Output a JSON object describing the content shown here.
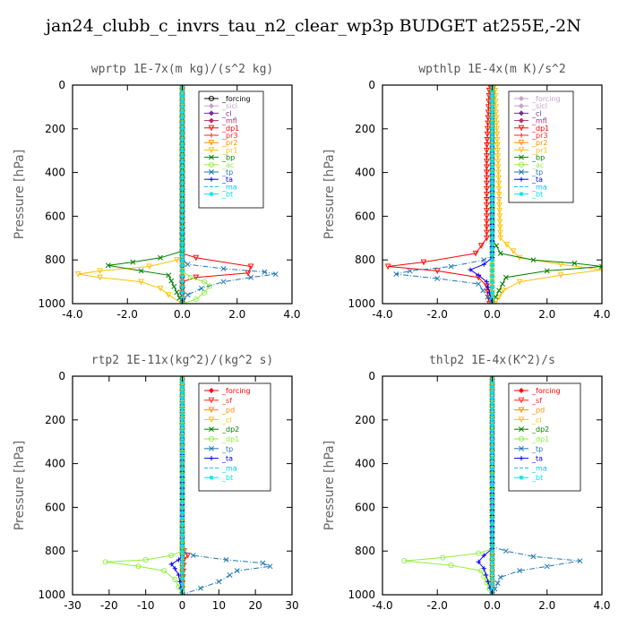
{
  "title": "jan24_clubb_c_invrs_tau_n2_clear_wp3p  BUDGET at255E,-2N",
  "chart_data": [
    {
      "type": "line",
      "title": "wprtp   1E-7x(m kg)/(s^2 kg)",
      "ylabel": "Pressure  [hPa]",
      "xlim": [
        -4,
        4
      ],
      "ylim": [
        1000,
        0
      ],
      "xticks": [
        -4,
        -2,
        0,
        2,
        4
      ],
      "xtick_labels": [
        "-4.0",
        "-2.0",
        "0.0",
        "2.0",
        "4.0"
      ],
      "yticks": [
        0,
        200,
        400,
        600,
        800,
        1000
      ],
      "ytick_labels": [
        "0",
        "200",
        "400",
        "600",
        "800",
        "1000"
      ],
      "legend_position": "top-right",
      "series": [
        {
          "name": "_forcing",
          "color": "#000000",
          "marker": "circle",
          "x": [
            0,
            0,
            0,
            0,
            0
          ],
          "y": [
            0,
            250,
            500,
            750,
            1000
          ]
        },
        {
          "name": "_sicl",
          "color": "#c8a2c8",
          "marker": "diamond",
          "x": [
            0,
            0,
            0
          ],
          "y": [
            0,
            500,
            1000
          ]
        },
        {
          "name": "_cl",
          "color": "#7030a0",
          "marker": "diamond",
          "x": [
            0,
            0,
            0
          ],
          "y": [
            0,
            500,
            1000
          ]
        },
        {
          "name": "_mfl",
          "color": "#b0306a",
          "marker": "diamond",
          "x": [
            0,
            0,
            0
          ],
          "y": [
            0,
            500,
            1000
          ]
        },
        {
          "name": "_dp1",
          "color": "#ff0000",
          "marker": "triangle",
          "x": [
            0,
            0,
            0.5,
            2.5,
            2.4,
            0.5,
            0,
            0
          ],
          "y": [
            0,
            770,
            790,
            830,
            860,
            880,
            900,
            1000
          ]
        },
        {
          "name": "_pr3",
          "color": "#ff2020",
          "marker": "plus",
          "x": [
            0,
            0,
            0
          ],
          "y": [
            0,
            500,
            1000
          ]
        },
        {
          "name": "_pr2",
          "color": "#ff8c00",
          "marker": "triangle",
          "x": [
            0,
            0,
            0
          ],
          "y": [
            0,
            500,
            1000
          ]
        },
        {
          "name": "_pr1",
          "color": "#ffc000",
          "marker": "triangle",
          "x": [
            0,
            0,
            -0.2,
            -1.2,
            -3.0,
            -3.8,
            -3.0,
            -1.5,
            -0.8,
            -0.5,
            0
          ],
          "y": [
            0,
            780,
            800,
            830,
            850,
            865,
            880,
            900,
            930,
            960,
            1000
          ]
        },
        {
          "name": "_bp",
          "color": "#008000",
          "marker": "cross",
          "x": [
            0,
            0,
            -0.8,
            -1.8,
            -2.7,
            -1.5,
            -0.5,
            0
          ],
          "y": [
            0,
            760,
            790,
            810,
            825,
            850,
            870,
            1000
          ]
        },
        {
          "name": "_ac",
          "color": "#90ee40",
          "marker": "circle",
          "x": [
            0,
            0,
            0,
            0.3,
            0.8,
            1.0,
            0.8,
            0.5,
            0
          ],
          "y": [
            0,
            820,
            850,
            880,
            900,
            920,
            950,
            980,
            1000
          ]
        },
        {
          "name": "_tp",
          "color": "#1f77b4",
          "marker": "cross",
          "x": [
            0,
            0,
            0.2,
            1.5,
            3.0,
            3.4,
            2.5,
            1.5,
            0.7,
            0.2,
            0
          ],
          "y": [
            0,
            800,
            820,
            840,
            855,
            865,
            880,
            900,
            930,
            960,
            1000
          ]
        },
        {
          "name": "_ta",
          "color": "#0000ff",
          "marker": "plus",
          "x": [
            0,
            0,
            0
          ],
          "y": [
            0,
            500,
            1000
          ]
        },
        {
          "name": "_ma",
          "color": "#00bfff",
          "marker": "none",
          "x": [
            0,
            0,
            0
          ],
          "y": [
            0,
            500,
            1000
          ]
        },
        {
          "name": "_bt",
          "color": "#00e5ee",
          "marker": "star",
          "x": [
            0,
            0,
            0
          ],
          "y": [
            0,
            500,
            1000
          ]
        }
      ]
    },
    {
      "type": "line",
      "title": "wpthlp   1E-4x(m K)/s^2",
      "ylabel": "Pressure  [hPa]",
      "xlim": [
        -4,
        4
      ],
      "ylim": [
        1000,
        0
      ],
      "xticks": [
        -4,
        -2,
        0,
        2,
        4
      ],
      "xtick_labels": [
        "-4.0",
        "-2.0",
        "0.0",
        "2.0",
        "4.0"
      ],
      "yticks": [
        0,
        200,
        400,
        600,
        800,
        1000
      ],
      "ytick_labels": [
        "0",
        "200",
        "400",
        "600",
        "800",
        "1000"
      ],
      "legend_position": "top-right",
      "series": [
        {
          "name": "_forcing",
          "color": "#c8a2c8",
          "marker": "diamond",
          "x": [
            0,
            0,
            0
          ],
          "y": [
            0,
            500,
            1000
          ]
        },
        {
          "name": "_sicl",
          "color": "#c8a2c8",
          "marker": "diamond",
          "x": [
            0,
            0,
            0
          ],
          "y": [
            0,
            500,
            1000
          ]
        },
        {
          "name": "_cl",
          "color": "#7030a0",
          "marker": "diamond",
          "x": [
            0,
            0,
            0
          ],
          "y": [
            0,
            500,
            1000
          ]
        },
        {
          "name": "_mfl",
          "color": "#b0306a",
          "marker": "diamond",
          "x": [
            0,
            0,
            0
          ],
          "y": [
            0,
            500,
            1000
          ]
        },
        {
          "name": "_dp1",
          "color": "#ff0000",
          "marker": "triangle",
          "x": [
            -0.1,
            -0.2,
            -0.2,
            -0.6,
            -2.5,
            -3.8,
            -2.0,
            -0.5,
            -0.2,
            -0.1
          ],
          "y": [
            0,
            300,
            700,
            770,
            810,
            830,
            850,
            880,
            920,
            1000
          ]
        },
        {
          "name": "_pr3",
          "color": "#ff2020",
          "marker": "plus",
          "x": [
            0,
            0,
            0
          ],
          "y": [
            0,
            500,
            1000
          ]
        },
        {
          "name": "_pr2",
          "color": "#ff8c00",
          "marker": "triangle",
          "x": [
            0,
            0,
            0
          ],
          "y": [
            0,
            500,
            1000
          ]
        },
        {
          "name": "_pr1",
          "color": "#ffc000",
          "marker": "triangle",
          "x": [
            0.1,
            0.2,
            0.3,
            1.0,
            2.5,
            4.0,
            2.5,
            1.0,
            0.4,
            0.1
          ],
          "y": [
            0,
            300,
            700,
            790,
            820,
            845,
            870,
            900,
            940,
            1000
          ]
        },
        {
          "name": "_bp",
          "color": "#008000",
          "marker": "cross",
          "x": [
            0,
            0,
            0.3,
            1.5,
            3.0,
            4.0,
            2.0,
            0.5,
            0
          ],
          "y": [
            0,
            700,
            770,
            800,
            815,
            830,
            850,
            880,
            1000
          ]
        },
        {
          "name": "_ac",
          "color": "#90ee40",
          "marker": "circle",
          "x": [
            0,
            0,
            0
          ],
          "y": [
            0,
            500,
            1000
          ]
        },
        {
          "name": "_tp",
          "color": "#1f77b4",
          "marker": "cross",
          "x": [
            0,
            0,
            -0.3,
            -1.5,
            -3.0,
            -3.5,
            -2.0,
            -0.5,
            0
          ],
          "y": [
            0,
            780,
            800,
            830,
            850,
            865,
            885,
            910,
            1000
          ]
        },
        {
          "name": "_ta",
          "color": "#0000ff",
          "marker": "plus",
          "x": [
            0,
            0,
            -0.3,
            -0.8,
            -0.5,
            -0.2,
            0
          ],
          "y": [
            0,
            790,
            820,
            845,
            870,
            900,
            1000
          ]
        },
        {
          "name": "_ma",
          "color": "#00bfff",
          "marker": "none",
          "x": [
            0,
            0,
            0
          ],
          "y": [
            0,
            500,
            1000
          ]
        },
        {
          "name": "_bt",
          "color": "#00e5ee",
          "marker": "star",
          "x": [
            0,
            0,
            0
          ],
          "y": [
            0,
            500,
            1000
          ]
        }
      ]
    },
    {
      "type": "line",
      "title": "rtp2   1E-11x(kg^2)/(kg^2 s)",
      "ylabel": "Pressure  [hPa]",
      "xlim": [
        -30,
        30
      ],
      "ylim": [
        1000,
        0
      ],
      "xticks": [
        -30,
        -20,
        -10,
        0,
        10,
        20,
        30
      ],
      "xtick_labels": [
        "-30",
        "-20",
        "-10",
        "0",
        "10",
        "20",
        "30"
      ],
      "yticks": [
        0,
        200,
        400,
        600,
        800,
        1000
      ],
      "ytick_labels": [
        "0",
        "200",
        "400",
        "600",
        "800",
        "1000"
      ],
      "legend_position": "top-right",
      "series": [
        {
          "name": "_forcing",
          "color": "#ff0000",
          "marker": "diamond",
          "x": [
            0,
            0,
            0,
            0,
            0
          ],
          "y": [
            0,
            250,
            500,
            750,
            1000
          ]
        },
        {
          "name": "_sf",
          "color": "#ff2020",
          "marker": "triangle",
          "x": [
            0,
            0,
            0.5,
            1.5,
            0.5,
            0
          ],
          "y": [
            0,
            790,
            800,
            820,
            840,
            1000
          ]
        },
        {
          "name": "_pd",
          "color": "#ff8c00",
          "marker": "triangle",
          "x": [
            0,
            0,
            0
          ],
          "y": [
            0,
            500,
            1000
          ]
        },
        {
          "name": "_cl",
          "color": "#ffc000",
          "marker": "triangle",
          "x": [
            0,
            0,
            0
          ],
          "y": [
            0,
            500,
            1000
          ]
        },
        {
          "name": "_dp2",
          "color": "#008000",
          "marker": "cross",
          "x": [
            0,
            0,
            0
          ],
          "y": [
            0,
            500,
            1000
          ]
        },
        {
          "name": "_dp1",
          "color": "#90ee40",
          "marker": "circle",
          "x": [
            0,
            0,
            -3,
            -10,
            -21,
            -12,
            -5,
            -2,
            0
          ],
          "y": [
            0,
            800,
            820,
            840,
            850,
            870,
            890,
            930,
            1000
          ]
        },
        {
          "name": "_tp",
          "color": "#1f77b4",
          "marker": "cross",
          "x": [
            0,
            0,
            3,
            12,
            22,
            24,
            15,
            13,
            10,
            5,
            0
          ],
          "y": [
            0,
            800,
            820,
            840,
            855,
            870,
            890,
            910,
            940,
            970,
            1000
          ]
        },
        {
          "name": "_ta",
          "color": "#0000ff",
          "marker": "plus",
          "x": [
            0,
            0,
            -1,
            -3,
            -2,
            -1,
            0
          ],
          "y": [
            0,
            820,
            840,
            860,
            880,
            910,
            1000
          ]
        },
        {
          "name": "_ma",
          "color": "#00bfff",
          "marker": "none",
          "x": [
            0,
            0,
            0
          ],
          "y": [
            0,
            500,
            1000
          ]
        },
        {
          "name": "_bt",
          "color": "#00e5ee",
          "marker": "star",
          "x": [
            0,
            0,
            0
          ],
          "y": [
            0,
            500,
            1000
          ]
        }
      ]
    },
    {
      "type": "line",
      "title": "thlp2   1E-4x(K^2)/s",
      "ylabel": "Pressure  [hPa]",
      "xlim": [
        -4,
        4
      ],
      "ylim": [
        1000,
        0
      ],
      "xticks": [
        -4,
        -2,
        0,
        2,
        4
      ],
      "xtick_labels": [
        "-4.0",
        "-2.0",
        "0.0",
        "2.0",
        "4.0"
      ],
      "yticks": [
        0,
        200,
        400,
        600,
        800,
        1000
      ],
      "ytick_labels": [
        "0",
        "200",
        "400",
        "600",
        "800",
        "1000"
      ],
      "legend_position": "top-right",
      "series": [
        {
          "name": "_forcing",
          "color": "#ff0000",
          "marker": "diamond",
          "x": [
            0,
            0,
            0,
            0,
            0
          ],
          "y": [
            0,
            250,
            500,
            750,
            1000
          ]
        },
        {
          "name": "_sf",
          "color": "#ff2020",
          "marker": "triangle",
          "x": [
            0,
            0,
            0
          ],
          "y": [
            0,
            500,
            1000
          ]
        },
        {
          "name": "_pd",
          "color": "#ff8c00",
          "marker": "triangle",
          "x": [
            0,
            0,
            0
          ],
          "y": [
            0,
            500,
            1000
          ]
        },
        {
          "name": "_cl",
          "color": "#ffc000",
          "marker": "triangle",
          "x": [
            0,
            0,
            0
          ],
          "y": [
            0,
            500,
            1000
          ]
        },
        {
          "name": "_dp2",
          "color": "#008000",
          "marker": "cross",
          "x": [
            0,
            0,
            0
          ],
          "y": [
            0,
            500,
            1000
          ]
        },
        {
          "name": "_dp1",
          "color": "#90ee40",
          "marker": "circle",
          "x": [
            0,
            0,
            -0.5,
            -1.8,
            -3.2,
            -1.5,
            -0.4,
            0
          ],
          "y": [
            0,
            790,
            810,
            830,
            845,
            865,
            890,
            1000
          ]
        },
        {
          "name": "_tp",
          "color": "#1f77b4",
          "marker": "cross",
          "x": [
            0,
            0,
            0.5,
            1.5,
            3.2,
            2.0,
            1.0,
            0.3,
            0
          ],
          "y": [
            0,
            780,
            800,
            825,
            845,
            870,
            890,
            920,
            1000
          ]
        },
        {
          "name": "_ta",
          "color": "#0000ff",
          "marker": "plus",
          "x": [
            0,
            0,
            -0.3,
            -0.5,
            -0.3,
            0
          ],
          "y": [
            0,
            790,
            820,
            850,
            880,
            1000
          ]
        },
        {
          "name": "_ma",
          "color": "#00bfff",
          "marker": "none",
          "x": [
            0,
            0,
            0
          ],
          "y": [
            0,
            500,
            1000
          ]
        },
        {
          "name": "_bt",
          "color": "#00e5ee",
          "marker": "star",
          "x": [
            0,
            0,
            0
          ],
          "y": [
            0,
            500,
            1000
          ]
        }
      ]
    }
  ]
}
